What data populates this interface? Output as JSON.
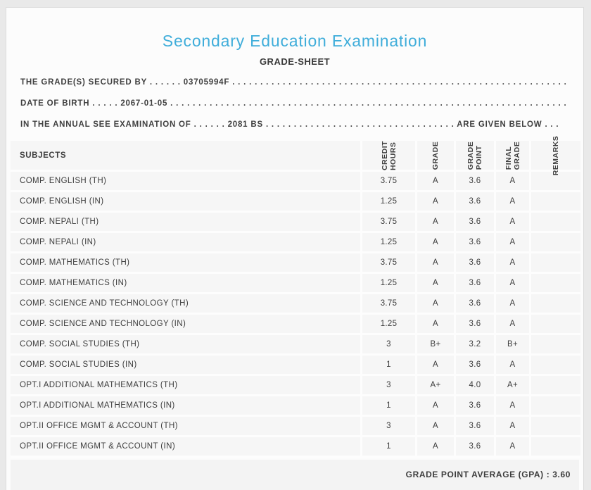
{
  "page": {
    "title": "Secondary Education Examination",
    "subtitle": "GRADE-SHEET"
  },
  "info_lines": [
    {
      "label": "THE GRADE(S) SECURED BY",
      "leader": ". . . . . .",
      "value": "03705994F",
      "trailer": ". . . . . . . . . . . . . . . . . . . . . . . . . . . . . . . . . . . . . . . . . . . . . . . . . . . . . . . . . . . . . . . . . . . . . . . . . .",
      "suffix": ""
    },
    {
      "label": "DATE OF BIRTH",
      "leader": ". . . . .",
      "value": "2067-01-05",
      "trailer": ". . . . . . . . . . . . . . . . . . . . . . . . . . . . . . . . . . . . . . . . . . . . . . . . . . . . . . . . . . . . . . . . . . . . . . . . . . . . . .",
      "suffix": ""
    },
    {
      "label": "IN THE ANNUAL SEE EXAMINATION OF",
      "leader": ". . . . . .",
      "value": "2081 BS",
      "trailer": ". . . . . . . . . . . . . . . . . . . . . . . . . . . . . . . . . .",
      "suffix": "ARE GIVEN BELOW . . ."
    }
  ],
  "table": {
    "columns": [
      {
        "label": "SUBJECTS"
      },
      {
        "label": "CREDIT\nHOURS"
      },
      {
        "label": "GRADE"
      },
      {
        "label": "GRADE\nPOINT"
      },
      {
        "label": "FINAL\nGRADE"
      },
      {
        "label": "REMARKS"
      }
    ],
    "rows": [
      {
        "subject": "COMP. ENGLISH (TH)",
        "credit_hours": "3.75",
        "grade": "A",
        "grade_point": "3.6",
        "final_grade": "A",
        "remarks": ""
      },
      {
        "subject": "COMP. ENGLISH (IN)",
        "credit_hours": "1.25",
        "grade": "A",
        "grade_point": "3.6",
        "final_grade": "A",
        "remarks": ""
      },
      {
        "subject": "COMP. NEPALI (TH)",
        "credit_hours": "3.75",
        "grade": "A",
        "grade_point": "3.6",
        "final_grade": "A",
        "remarks": ""
      },
      {
        "subject": "COMP. NEPALI (IN)",
        "credit_hours": "1.25",
        "grade": "A",
        "grade_point": "3.6",
        "final_grade": "A",
        "remarks": ""
      },
      {
        "subject": "COMP. MATHEMATICS (TH)",
        "credit_hours": "3.75",
        "grade": "A",
        "grade_point": "3.6",
        "final_grade": "A",
        "remarks": ""
      },
      {
        "subject": "COMP. MATHEMATICS (IN)",
        "credit_hours": "1.25",
        "grade": "A",
        "grade_point": "3.6",
        "final_grade": "A",
        "remarks": ""
      },
      {
        "subject": "COMP. SCIENCE AND TECHNOLOGY (TH)",
        "credit_hours": "3.75",
        "grade": "A",
        "grade_point": "3.6",
        "final_grade": "A",
        "remarks": ""
      },
      {
        "subject": "COMP. SCIENCE AND TECHNOLOGY (IN)",
        "credit_hours": "1.25",
        "grade": "A",
        "grade_point": "3.6",
        "final_grade": "A",
        "remarks": ""
      },
      {
        "subject": "COMP. SOCIAL STUDIES (TH)",
        "credit_hours": "3",
        "grade": "B+",
        "grade_point": "3.2",
        "final_grade": "B+",
        "remarks": ""
      },
      {
        "subject": "COMP. SOCIAL STUDIES (IN)",
        "credit_hours": "1",
        "grade": "A",
        "grade_point": "3.6",
        "final_grade": "A",
        "remarks": ""
      },
      {
        "subject": "OPT.I ADDITIONAL MATHEMATICS (TH)",
        "credit_hours": "3",
        "grade": "A+",
        "grade_point": "4.0",
        "final_grade": "A+",
        "remarks": ""
      },
      {
        "subject": "OPT.I ADDITIONAL MATHEMATICS (IN)",
        "credit_hours": "1",
        "grade": "A",
        "grade_point": "3.6",
        "final_grade": "A",
        "remarks": ""
      },
      {
        "subject": "OPT.II OFFICE MGMT & ACCOUNT (TH)",
        "credit_hours": "3",
        "grade": "A",
        "grade_point": "3.6",
        "final_grade": "A",
        "remarks": ""
      },
      {
        "subject": "OPT.II OFFICE MGMT & ACCOUNT (IN)",
        "credit_hours": "1",
        "grade": "A",
        "grade_point": "3.6",
        "final_grade": "A",
        "remarks": ""
      }
    ]
  },
  "footer": {
    "gpa_text": "GRADE POINT AVERAGE (GPA) : 3.60"
  },
  "colors": {
    "accent_blue": "#3fadda",
    "text": "#3e3e3e",
    "outer_background": "#e9e9e9",
    "card_background": "#fcfcfc",
    "row_background": "#f6f6f6",
    "footer_background": "#f3f3f3"
  }
}
